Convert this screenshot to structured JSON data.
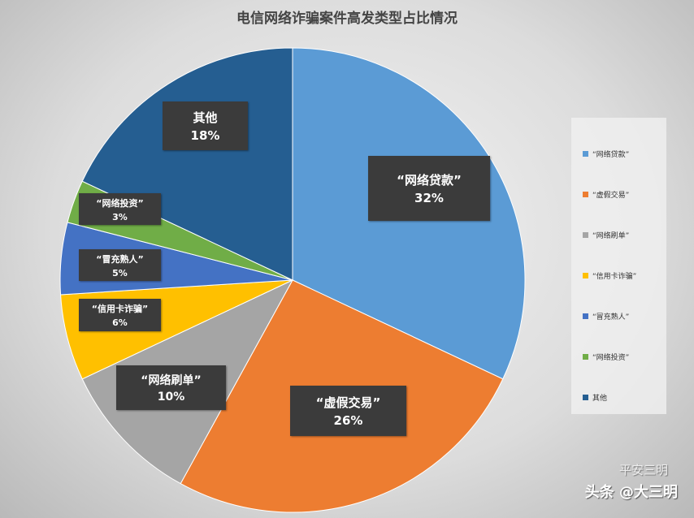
{
  "chart_data": {
    "type": "pie",
    "title": "电信网络诈骗案件高发类型占比情况",
    "start": "12 o'clock, clockwise",
    "legend_position": "right",
    "slices": [
      {
        "label": "“网络贷款”",
        "value": 32,
        "display": "32%",
        "color": "#5b9bd5"
      },
      {
        "label": "“虚假交易”",
        "value": 26,
        "display": "26%",
        "color": "#ed7d31"
      },
      {
        "label": "“网络刷单”",
        "value": 10,
        "display": "10%",
        "color": "#a5a5a5"
      },
      {
        "label": "“信用卡诈骗”",
        "value": 6,
        "display": "6%",
        "color": "#ffc000"
      },
      {
        "label": "“冒充熟人”",
        "value": 5,
        "display": "5%",
        "color": "#4472c4"
      },
      {
        "label": "“网络投资”",
        "value": 3,
        "display": "3%",
        "color": "#70ad47"
      },
      {
        "label": "其他",
        "value": 18,
        "display": "18%",
        "color": "#255e91"
      }
    ]
  },
  "watermark": {
    "top": "平安三明",
    "bottom": "头条 @大三明"
  }
}
